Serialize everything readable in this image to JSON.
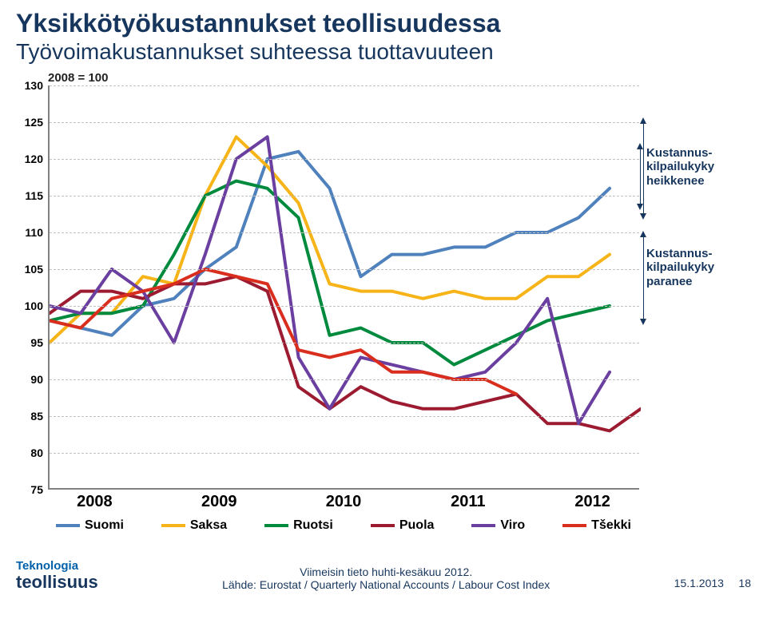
{
  "title": "Yksikkötyökustannukset teollisuudessa",
  "subtitle": "Työvoimakustannukset suhteessa tuottavuuteen",
  "index_label": "2008 = 100",
  "chart": {
    "type": "line",
    "ylim": [
      75,
      130
    ],
    "ytick_step": 5,
    "yticks": [
      75,
      80,
      85,
      90,
      95,
      100,
      105,
      110,
      115,
      120,
      125,
      130
    ],
    "gridline_color": "#c0c0c0",
    "axis_color": "#808080",
    "background": "#ffffff",
    "line_width": 4,
    "label_fontsize_y": 14,
    "label_fontsize_x": 20,
    "x_categories": [
      "2008",
      "2009",
      "2010",
      "2011",
      "2012"
    ],
    "x_points": 20,
    "series": [
      {
        "name": "Suomi",
        "color": "#4f81bd",
        "values": [
          98,
          97,
          96,
          100,
          101,
          105,
          108,
          120,
          121,
          116,
          104,
          107,
          107,
          108,
          108,
          110,
          110,
          112,
          116
        ]
      },
      {
        "name": "Saksa",
        "color": "#f7b418",
        "values": [
          95,
          99,
          99,
          104,
          103,
          115,
          123,
          119,
          114,
          103,
          102,
          102,
          101,
          102,
          101,
          101,
          104,
          104,
          107
        ]
      },
      {
        "name": "Ruotsi",
        "color": "#008a3e",
        "values": [
          98,
          99,
          99,
          100,
          107,
          115,
          117,
          116,
          112,
          96,
          97,
          95,
          95,
          92,
          94,
          96,
          98,
          99,
          100
        ]
      },
      {
        "name": "Puola",
        "color": "#9c1b30",
        "values": [
          99,
          102,
          102,
          101,
          103,
          103,
          104,
          102,
          89,
          86,
          89,
          87,
          86,
          86,
          87,
          88,
          84,
          84,
          83,
          86
        ]
      },
      {
        "name": "Viro",
        "color": "#6b3fa0",
        "values": [
          100,
          99,
          105,
          102,
          95,
          107,
          120,
          123,
          93,
          86,
          93,
          92,
          91,
          90,
          91,
          95,
          101,
          84,
          91
        ]
      },
      {
        "name": "Tšekki",
        "color": "#d92e1d",
        "values": [
          98,
          97,
          101,
          102,
          103,
          105,
          104,
          103,
          94,
          93,
          94,
          91,
          91,
          90,
          90,
          88
        ]
      }
    ]
  },
  "side_top": "Kustannus-\nkilpailukyky\nheikkenee",
  "side_bottom": "Kustannus-\nkilpailukyky\nparanee",
  "logo_line1": "Teknologia",
  "logo_line2": "teollisuus",
  "source_line1": "Viimeisin tieto huhti-kesäkuu 2012.",
  "source_line2": "Lähde: Eurostat / Quarterly National Accounts / Labour Cost Index",
  "date": "15.1.2013",
  "page": "18"
}
